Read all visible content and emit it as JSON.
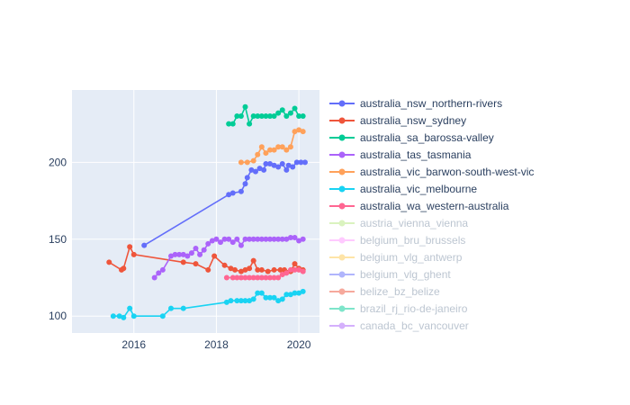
{
  "chart_data": {
    "type": "line",
    "title": "",
    "xlabel": "",
    "ylabel": "",
    "xlim": [
      2014.5,
      2020.5
    ],
    "ylim": [
      89,
      247
    ],
    "x_ticks": [
      2016,
      2018,
      2020
    ],
    "y_ticks": [
      100,
      150,
      200
    ],
    "grid": true,
    "legend_position": "right",
    "series": [
      {
        "name": "australia_nsw_northern-rivers",
        "color": "#636efa",
        "visible": true,
        "x": [
          2016.25,
          2018.3,
          2018.4,
          2018.6,
          2018.7,
          2018.75,
          2018.85,
          2018.95,
          2019.05,
          2019.15,
          2019.2,
          2019.3,
          2019.4,
          2019.5,
          2019.6,
          2019.7,
          2019.75,
          2019.85,
          2019.95,
          2020.05,
          2020.15
        ],
        "y": [
          146,
          179,
          180,
          181,
          186,
          190,
          195,
          194,
          196,
          195,
          199,
          199,
          198,
          197,
          199,
          195,
          198,
          197,
          200,
          200,
          200
        ]
      },
      {
        "name": "australia_nsw_sydney",
        "color": "#ef553b",
        "visible": true,
        "x": [
          2015.4,
          2015.7,
          2015.75,
          2015.9,
          2016.0,
          2017.2,
          2017.5,
          2017.8,
          2017.95,
          2018.2,
          2018.35,
          2018.45,
          2018.6,
          2018.7,
          2018.8,
          2018.9,
          2019.0,
          2019.1,
          2019.25,
          2019.4,
          2019.55,
          2019.65,
          2019.8,
          2019.9,
          2020.0,
          2020.1
        ],
        "y": [
          135,
          130,
          131,
          145,
          140,
          135,
          134,
          130,
          139,
          133,
          131,
          130,
          129,
          130,
          131,
          136,
          130,
          130,
          129,
          130,
          130,
          130,
          129,
          134,
          131,
          130
        ]
      },
      {
        "name": "australia_sa_barossa-valley",
        "color": "#00cc96",
        "visible": true,
        "x": [
          2018.3,
          2018.4,
          2018.5,
          2018.6,
          2018.7,
          2018.8,
          2018.9,
          2019.0,
          2019.1,
          2019.2,
          2019.3,
          2019.4,
          2019.5,
          2019.6,
          2019.7,
          2019.8,
          2019.9,
          2020.0,
          2020.1
        ],
        "y": [
          225,
          225,
          230,
          230,
          236,
          225,
          230,
          230,
          230,
          230,
          230,
          230,
          232,
          234,
          230,
          232,
          235,
          230,
          230
        ]
      },
      {
        "name": "australia_tas_tasmania",
        "color": "#ab63fa",
        "visible": true,
        "x": [
          2016.5,
          2016.6,
          2016.7,
          2016.9,
          2017.0,
          2017.1,
          2017.2,
          2017.3,
          2017.4,
          2017.5,
          2017.6,
          2017.7,
          2017.8,
          2017.9,
          2018.0,
          2018.1,
          2018.2,
          2018.3,
          2018.4,
          2018.5,
          2018.6,
          2018.7,
          2018.8,
          2018.9,
          2019.0,
          2019.1,
          2019.2,
          2019.3,
          2019.4,
          2019.5,
          2019.6,
          2019.7,
          2019.8,
          2019.9,
          2020.0,
          2020.1
        ],
        "y": [
          125,
          128,
          130,
          139,
          140,
          140,
          140,
          139,
          141,
          144,
          140,
          143,
          147,
          149,
          150,
          148,
          150,
          150,
          148,
          150,
          146,
          150,
          150,
          150,
          150,
          150,
          150,
          150,
          150,
          150,
          150,
          150,
          151,
          151,
          149,
          150
        ]
      },
      {
        "name": "australia_vic_barwon-south-west-vic",
        "color": "#ffa15a",
        "visible": true,
        "x": [
          2018.6,
          2018.75,
          2018.9,
          2019.0,
          2019.1,
          2019.2,
          2019.3,
          2019.4,
          2019.5,
          2019.6,
          2019.7,
          2019.8,
          2019.9,
          2020.0,
          2020.1
        ],
        "y": [
          200,
          200,
          201,
          205,
          210,
          206,
          208,
          208,
          210,
          210,
          208,
          210,
          220,
          221,
          220
        ]
      },
      {
        "name": "australia_vic_melbourne",
        "color": "#19d3f3",
        "visible": true,
        "x": [
          2015.5,
          2015.65,
          2015.75,
          2015.9,
          2016.0,
          2016.7,
          2016.9,
          2017.2,
          2018.25,
          2018.35,
          2018.5,
          2018.6,
          2018.7,
          2018.8,
          2018.9,
          2019.0,
          2019.1,
          2019.2,
          2019.3,
          2019.4,
          2019.5,
          2019.6,
          2019.7,
          2019.8,
          2019.9,
          2020.0,
          2020.1
        ],
        "y": [
          100,
          100,
          99,
          105,
          100,
          100,
          105,
          105,
          109,
          110,
          110,
          110,
          110,
          110,
          111,
          115,
          115,
          112,
          112,
          112,
          110,
          111,
          114,
          114,
          115,
          115,
          116
        ]
      },
      {
        "name": "australia_wa_western-australia",
        "color": "#ff6692",
        "visible": true,
        "x": [
          2018.25,
          2018.4,
          2018.5,
          2018.6,
          2018.7,
          2018.8,
          2018.9,
          2019.0,
          2019.1,
          2019.2,
          2019.3,
          2019.4,
          2019.5,
          2019.6,
          2019.7,
          2019.8,
          2019.9,
          2020.0,
          2020.1
        ],
        "y": [
          125,
          125,
          125,
          125,
          125,
          125,
          125,
          125,
          125,
          125,
          125,
          125,
          125,
          127,
          128,
          130,
          130,
          130,
          129
        ]
      },
      {
        "name": "austria_vienna_vienna",
        "color": "#b6e880",
        "visible": false,
        "x": [],
        "y": []
      },
      {
        "name": "belgium_bru_brussels",
        "color": "#ff97ff",
        "visible": false,
        "x": [],
        "y": []
      },
      {
        "name": "belgium_vlg_antwerp",
        "color": "#fecb52",
        "visible": false,
        "x": [],
        "y": []
      },
      {
        "name": "belgium_vlg_ghent",
        "color": "#636efa",
        "visible": false,
        "x": [],
        "y": []
      },
      {
        "name": "belize_bz_belize",
        "color": "#ef553b",
        "visible": false,
        "x": [],
        "y": []
      },
      {
        "name": "brazil_rj_rio-de-janeiro",
        "color": "#00cc96",
        "visible": false,
        "x": [],
        "y": []
      },
      {
        "name": "canada_bc_vancouver",
        "color": "#ab63fa",
        "visible": false,
        "x": [],
        "y": []
      }
    ]
  }
}
